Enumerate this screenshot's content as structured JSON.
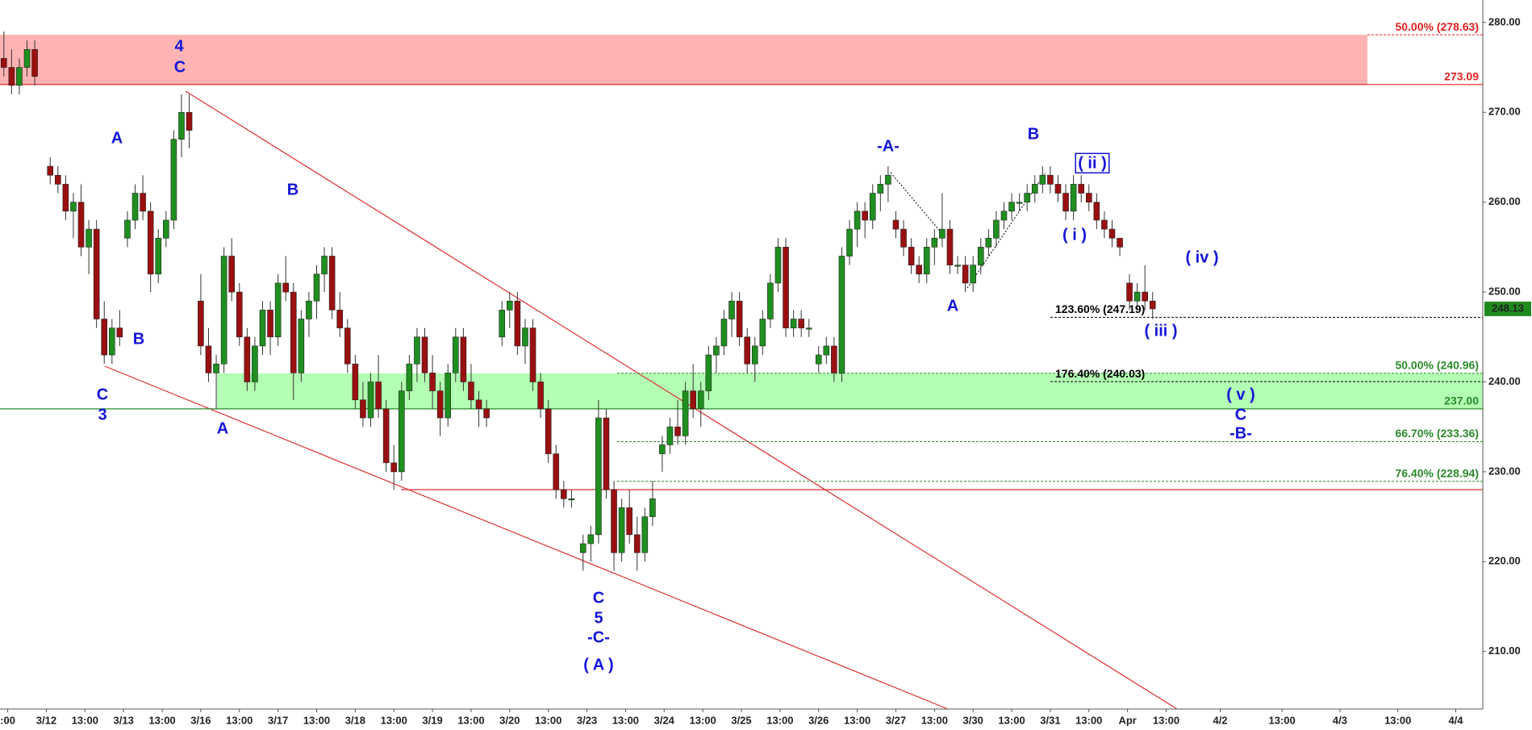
{
  "chart_data": {
    "type": "candlestick",
    "xlim": [
      -0.2,
      38.2
    ],
    "ylim": [
      203.6,
      282.5
    ],
    "xticks": [
      {
        "value": 0,
        "label": ":00"
      },
      {
        "value": 1,
        "label": "3/12"
      },
      {
        "value": 2,
        "label": "13:00"
      },
      {
        "value": 3,
        "label": "3/13"
      },
      {
        "value": 4,
        "label": "13:00"
      },
      {
        "value": 5,
        "label": "3/16"
      },
      {
        "value": 6,
        "label": "13:00"
      },
      {
        "value": 7,
        "label": "3/17"
      },
      {
        "value": 8,
        "label": "13:00"
      },
      {
        "value": 9,
        "label": "3/18"
      },
      {
        "value": 10,
        "label": "13:00"
      },
      {
        "value": 11,
        "label": "3/19"
      },
      {
        "value": 12,
        "label": "13:00"
      },
      {
        "value": 13,
        "label": "3/20"
      },
      {
        "value": 14,
        "label": "13:00"
      },
      {
        "value": 15,
        "label": "3/23"
      },
      {
        "value": 16,
        "label": "13:00"
      },
      {
        "value": 17,
        "label": "3/24"
      },
      {
        "value": 18,
        "label": "13:00"
      },
      {
        "value": 19,
        "label": "3/25"
      },
      {
        "value": 20,
        "label": "13:00"
      },
      {
        "value": 21,
        "label": "3/26"
      },
      {
        "value": 22,
        "label": "13:00"
      },
      {
        "value": 23,
        "label": "3/27"
      },
      {
        "value": 24,
        "label": "13:00"
      },
      {
        "value": 25,
        "label": "3/30"
      },
      {
        "value": 26,
        "label": "13:00"
      },
      {
        "value": 27,
        "label": "3/31"
      },
      {
        "value": 28,
        "label": "13:00"
      },
      {
        "value": 29,
        "label": "Apr"
      },
      {
        "value": 30,
        "label": "13:00"
      },
      {
        "value": 31.4,
        "label": "4/2"
      },
      {
        "value": 33,
        "label": "13:00"
      },
      {
        "value": 34.5,
        "label": "4/3"
      },
      {
        "value": 36,
        "label": "13:00"
      },
      {
        "value": 37.5,
        "label": "4/4"
      }
    ],
    "yticks": [
      {
        "value": 210,
        "label": "210.00"
      },
      {
        "value": 220,
        "label": "220.00"
      },
      {
        "value": 230,
        "label": "230.00"
      },
      {
        "value": 240,
        "label": "240.00"
      },
      {
        "value": 250,
        "label": "250.00"
      },
      {
        "value": 260,
        "label": "260.00"
      },
      {
        "value": 270,
        "label": "270.00"
      },
      {
        "value": 280,
        "label": "280.00"
      }
    ],
    "up_color": "#1f8f1f",
    "down_color": "#9a1010",
    "candles": [
      [
        -0.1,
        276,
        279,
        274,
        275
      ],
      [
        0.1,
        275,
        277,
        272,
        273
      ],
      [
        0.3,
        273,
        276,
        272,
        275
      ],
      [
        0.5,
        275,
        278,
        274,
        277
      ],
      [
        0.7,
        277,
        278,
        273,
        274
      ],
      [
        1.1,
        264,
        265,
        262,
        263
      ],
      [
        1.3,
        263,
        264,
        261,
        262
      ],
      [
        1.5,
        262,
        263,
        258,
        259
      ],
      [
        1.7,
        259,
        261,
        256,
        260
      ],
      [
        1.9,
        260,
        262,
        254,
        255
      ],
      [
        2.1,
        255,
        258,
        252,
        257
      ],
      [
        2.3,
        257,
        258,
        246,
        247
      ],
      [
        2.5,
        247,
        249,
        242,
        243
      ],
      [
        2.7,
        243,
        247,
        242,
        246
      ],
      [
        2.9,
        246,
        248,
        244,
        245
      ],
      [
        3.1,
        256,
        259,
        255,
        258
      ],
      [
        3.3,
        258,
        262,
        257,
        261
      ],
      [
        3.5,
        261,
        263,
        258,
        259
      ],
      [
        3.7,
        259,
        260,
        250,
        252
      ],
      [
        3.9,
        252,
        257,
        251,
        256
      ],
      [
        4.1,
        256,
        259,
        255,
        258
      ],
      [
        4.3,
        258,
        268,
        257,
        267
      ],
      [
        4.5,
        267,
        272,
        265,
        270
      ],
      [
        4.7,
        270,
        272,
        266,
        268
      ],
      [
        5.0,
        249,
        252,
        243,
        244
      ],
      [
        5.2,
        244,
        246,
        240,
        241
      ],
      [
        5.4,
        241,
        243,
        237,
        242
      ],
      [
        5.6,
        242,
        255,
        241,
        254
      ],
      [
        5.8,
        254,
        256,
        249,
        250
      ],
      [
        6.0,
        250,
        251,
        244,
        245
      ],
      [
        6.2,
        245,
        246,
        239,
        240
      ],
      [
        6.4,
        240,
        245,
        239,
        244
      ],
      [
        6.6,
        244,
        249,
        243,
        248
      ],
      [
        6.8,
        248,
        249,
        243,
        245
      ],
      [
        7.0,
        245,
        252,
        244,
        251
      ],
      [
        7.2,
        251,
        254,
        249,
        250
      ],
      [
        7.4,
        250,
        251,
        238,
        241
      ],
      [
        7.6,
        241,
        248,
        240,
        247
      ],
      [
        7.8,
        247,
        250,
        245,
        249
      ],
      [
        8.0,
        249,
        253,
        247,
        252
      ],
      [
        8.2,
        252,
        255,
        250,
        254
      ],
      [
        8.4,
        254,
        255,
        247,
        248
      ],
      [
        8.6,
        248,
        250,
        245,
        246
      ],
      [
        8.8,
        246,
        247,
        241,
        242
      ],
      [
        9.0,
        242,
        243,
        237,
        238
      ],
      [
        9.2,
        238,
        240,
        235,
        236
      ],
      [
        9.4,
        236,
        241,
        235,
        240
      ],
      [
        9.6,
        240,
        243,
        236,
        237
      ],
      [
        9.8,
        237,
        238,
        230,
        231
      ],
      [
        10.0,
        231,
        233,
        228,
        230
      ],
      [
        10.2,
        230,
        240,
        229,
        239
      ],
      [
        10.4,
        239,
        243,
        238,
        242
      ],
      [
        10.6,
        242,
        246,
        240,
        245
      ],
      [
        10.8,
        245,
        246,
        240,
        241
      ],
      [
        11.0,
        241,
        243,
        237,
        239
      ],
      [
        11.2,
        239,
        240,
        234,
        236
      ],
      [
        11.4,
        236,
        242,
        235,
        241
      ],
      [
        11.6,
        241,
        246,
        240,
        245
      ],
      [
        11.8,
        245,
        246,
        239,
        240
      ],
      [
        12.0,
        240,
        242,
        237,
        238
      ],
      [
        12.2,
        238,
        239,
        235,
        237
      ],
      [
        12.4,
        237,
        238,
        235,
        236
      ],
      [
        12.8,
        245,
        249,
        244,
        248
      ],
      [
        13.0,
        248,
        250,
        246,
        249
      ],
      [
        13.2,
        249,
        250,
        243,
        244
      ],
      [
        13.4,
        244,
        247,
        242,
        246
      ],
      [
        13.6,
        246,
        247,
        239,
        240
      ],
      [
        13.8,
        240,
        241,
        236,
        237
      ],
      [
        14.0,
        237,
        238,
        231,
        232
      ],
      [
        14.2,
        232,
        233,
        227,
        228
      ],
      [
        14.4,
        228,
        229,
        226,
        227
      ],
      [
        14.6,
        227,
        228,
        226,
        227
      ],
      [
        14.9,
        221,
        223,
        219,
        222
      ],
      [
        15.1,
        222,
        224,
        220,
        223
      ],
      [
        15.3,
        223,
        238,
        222,
        236
      ],
      [
        15.5,
        236,
        237,
        227,
        228
      ],
      [
        15.7,
        228,
        229,
        219,
        221
      ],
      [
        15.9,
        221,
        227,
        220,
        226
      ],
      [
        16.1,
        226,
        228,
        222,
        223
      ],
      [
        16.3,
        223,
        225,
        219,
        221
      ],
      [
        16.5,
        221,
        226,
        220,
        225
      ],
      [
        16.7,
        225,
        229,
        224,
        227
      ],
      [
        16.95,
        232,
        234,
        230,
        233
      ],
      [
        17.15,
        233,
        236,
        232,
        235
      ],
      [
        17.35,
        235,
        238,
        233,
        234
      ],
      [
        17.55,
        234,
        240,
        233,
        239
      ],
      [
        17.75,
        239,
        242,
        236,
        237
      ],
      [
        17.95,
        237,
        240,
        235,
        239
      ],
      [
        18.15,
        239,
        244,
        238,
        243
      ],
      [
        18.35,
        243,
        245,
        241,
        244
      ],
      [
        18.55,
        244,
        248,
        243,
        247
      ],
      [
        18.75,
        247,
        250,
        245,
        249
      ],
      [
        18.95,
        249,
        250,
        244,
        245
      ],
      [
        19.15,
        245,
        246,
        241,
        242
      ],
      [
        19.35,
        242,
        245,
        240,
        244
      ],
      [
        19.55,
        244,
        248,
        243,
        247
      ],
      [
        19.75,
        247,
        252,
        246,
        251
      ],
      [
        19.95,
        251,
        256,
        250,
        255
      ],
      [
        20.15,
        255,
        256,
        245,
        246
      ],
      [
        20.35,
        246,
        248,
        245,
        247
      ],
      [
        20.55,
        247,
        248,
        245,
        246
      ],
      [
        20.75,
        246,
        247,
        245,
        246
      ],
      [
        21.0,
        242,
        244,
        241,
        243
      ],
      [
        21.2,
        243,
        245,
        242,
        244
      ],
      [
        21.4,
        244,
        245,
        240,
        241
      ],
      [
        21.6,
        241,
        255,
        240,
        254
      ],
      [
        21.8,
        254,
        258,
        253,
        257
      ],
      [
        22.0,
        257,
        260,
        255,
        259
      ],
      [
        22.2,
        259,
        260,
        256,
        258
      ],
      [
        22.4,
        258,
        262,
        257,
        261
      ],
      [
        22.6,
        261,
        263,
        259,
        262
      ],
      [
        22.8,
        262,
        264,
        260,
        263
      ],
      [
        23.0,
        258,
        259,
        256,
        257
      ],
      [
        23.2,
        257,
        258,
        254,
        255
      ],
      [
        23.4,
        255,
        256,
        252,
        253
      ],
      [
        23.6,
        253,
        254,
        251,
        252
      ],
      [
        23.8,
        252,
        256,
        251,
        255
      ],
      [
        24.0,
        255,
        257,
        253,
        256
      ],
      [
        24.2,
        256,
        261,
        255,
        257
      ],
      [
        24.4,
        257,
        258,
        252,
        253
      ],
      [
        24.6,
        253,
        254,
        252,
        253
      ],
      [
        24.8,
        253,
        254,
        250,
        251
      ],
      [
        25.0,
        251,
        254,
        250,
        253
      ],
      [
        25.2,
        253,
        256,
        252,
        255
      ],
      [
        25.4,
        255,
        257,
        254,
        256
      ],
      [
        25.6,
        256,
        259,
        255,
        258
      ],
      [
        25.8,
        258,
        260,
        257,
        259
      ],
      [
        26.0,
        259,
        261,
        258,
        260
      ],
      [
        26.2,
        260,
        261,
        259,
        260
      ],
      [
        26.4,
        260,
        262,
        259,
        261
      ],
      [
        26.6,
        261,
        263,
        260,
        262
      ],
      [
        26.8,
        262,
        264,
        261,
        263
      ],
      [
        27.0,
        263,
        264,
        261,
        262
      ],
      [
        27.2,
        262,
        263,
        260,
        261
      ],
      [
        27.4,
        261,
        262,
        258,
        259
      ],
      [
        27.6,
        259,
        263,
        258,
        262
      ],
      [
        27.8,
        262,
        263,
        260,
        261
      ],
      [
        28.0,
        261,
        262,
        259,
        260
      ],
      [
        28.2,
        260,
        261,
        257,
        258
      ],
      [
        28.4,
        258,
        259,
        256,
        257
      ],
      [
        28.6,
        257,
        258,
        255,
        256
      ],
      [
        28.8,
        256,
        256,
        254,
        255
      ],
      [
        29.05,
        251,
        252,
        248,
        249
      ],
      [
        29.25,
        249,
        251,
        248,
        250
      ],
      [
        29.45,
        250,
        253,
        248,
        249
      ],
      [
        29.65,
        249,
        250,
        247,
        248.13
      ]
    ],
    "zones": [
      {
        "from": 273.09,
        "to": 278.63,
        "color": "#ffb3b3"
      },
      {
        "from": 237.0,
        "to": 240.96,
        "color": "#b3ffb3"
      }
    ],
    "levels": [
      {
        "value": 278.63,
        "label": "50.00% (278.63)",
        "color": "#e02020",
        "style": "dashed"
      },
      {
        "value": 273.09,
        "label": "273.09",
        "color": "#e02020",
        "style": "solid"
      },
      {
        "value": 247.19,
        "label": "123.60% (247.19)",
        "color": "#000000",
        "style": "dashed"
      },
      {
        "value": 240.96,
        "label": "50.00% (240.96)",
        "color": "#2a8a2a",
        "style": "dashed"
      },
      {
        "value": 240.03,
        "label": "176.40% (240.03)",
        "color": "#000000",
        "style": "dashed"
      },
      {
        "value": 237.0,
        "label": "237.00",
        "color": "#2a8a2a",
        "style": "solid"
      },
      {
        "value": 233.36,
        "label": "66.70% (233.36)",
        "color": "#2a8a2a",
        "style": "dashed"
      },
      {
        "value": 228.94,
        "label": "76.40% (228.94)",
        "color": "#2a8a2a",
        "style": "dashed"
      }
    ],
    "last_price": {
      "value": 248.13,
      "label": "248.13",
      "color": "#1e8a1e"
    },
    "wave_labels": [
      "4",
      "C",
      "A",
      "B",
      "C",
      "3",
      "B",
      "A",
      "C",
      "5",
      "-C-",
      "( A )",
      "-A-",
      "A",
      "B",
      "( ii )",
      "( i )",
      "( iv )",
      "( iii )",
      "( v )",
      "C",
      "-B-"
    ],
    "wave_color": "#1414d8"
  }
}
